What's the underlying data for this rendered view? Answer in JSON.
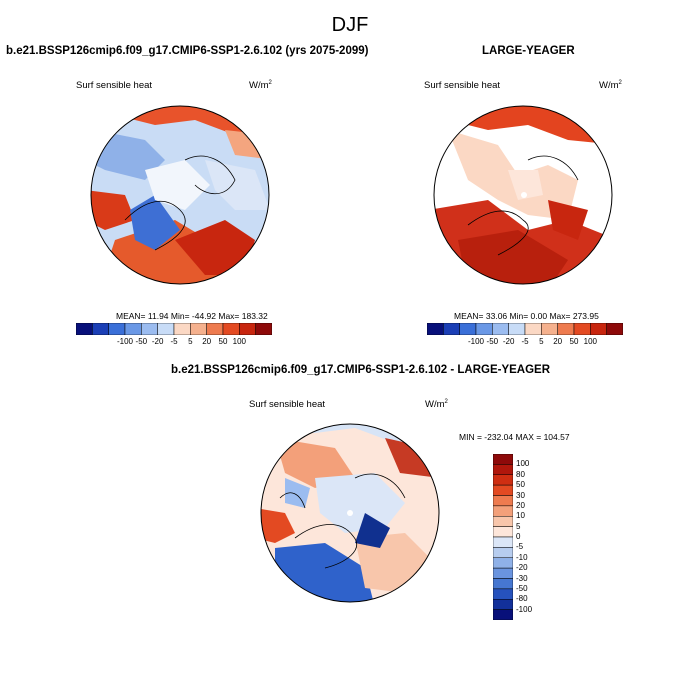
{
  "page_title": "DJF",
  "panels": [
    {
      "title": "b.e21.BSSP126cmip6.f09_g17.CMIP6-SSP1-2.6.102 (yrs 2075-2099)",
      "variable": "Surf sensible heat",
      "units_base": "W/m",
      "units_exp": "2",
      "stats": "MEAN=  11.94  Min= -44.92  Max= 183.32"
    },
    {
      "title": "LARGE-YEAGER",
      "variable": "Surf sensible heat",
      "units_base": "W/m",
      "units_exp": "2",
      "stats": "MEAN=  33.06  Min=   0.00  Max= 273.95"
    },
    {
      "title": "b.e21.BSSP126cmip6.f09_g17.CMIP6-SSP1-2.6.102 - LARGE-YEAGER",
      "variable": "Surf sensible heat",
      "units_base": "W/m",
      "units_exp": "2",
      "stats": "MIN = -232.04  MAX = 104.57"
    }
  ],
  "colorbar_top": {
    "labels": [
      "-100",
      "-50",
      "-20",
      "-5",
      "5",
      "20",
      "50",
      "100"
    ],
    "colors": [
      "#08107a",
      "#1b3fb6",
      "#3a6fd8",
      "#6a98e6",
      "#9bbcf0",
      "#c8dcf7",
      "#fbd8c4",
      "#f5b18e",
      "#ee7b4f",
      "#e34a22",
      "#c8260f",
      "#8e0a0a"
    ]
  },
  "colorbar_diff": {
    "labels": [
      "100",
      "80",
      "50",
      "30",
      "20",
      "10",
      "5",
      "0",
      "-5",
      "-10",
      "-20",
      "-30",
      "-50",
      "-80",
      "-100"
    ],
    "colors": [
      "#8e0a0a",
      "#b0170c",
      "#cf2e12",
      "#e34a22",
      "#ee7b4f",
      "#f3a07a",
      "#f8c6ab",
      "#fde6da",
      "#dbe6f7",
      "#b7cdef",
      "#8fb1e8",
      "#6a94df",
      "#4677d1",
      "#2652bd",
      "#12309a",
      "#08107a"
    ]
  }
}
